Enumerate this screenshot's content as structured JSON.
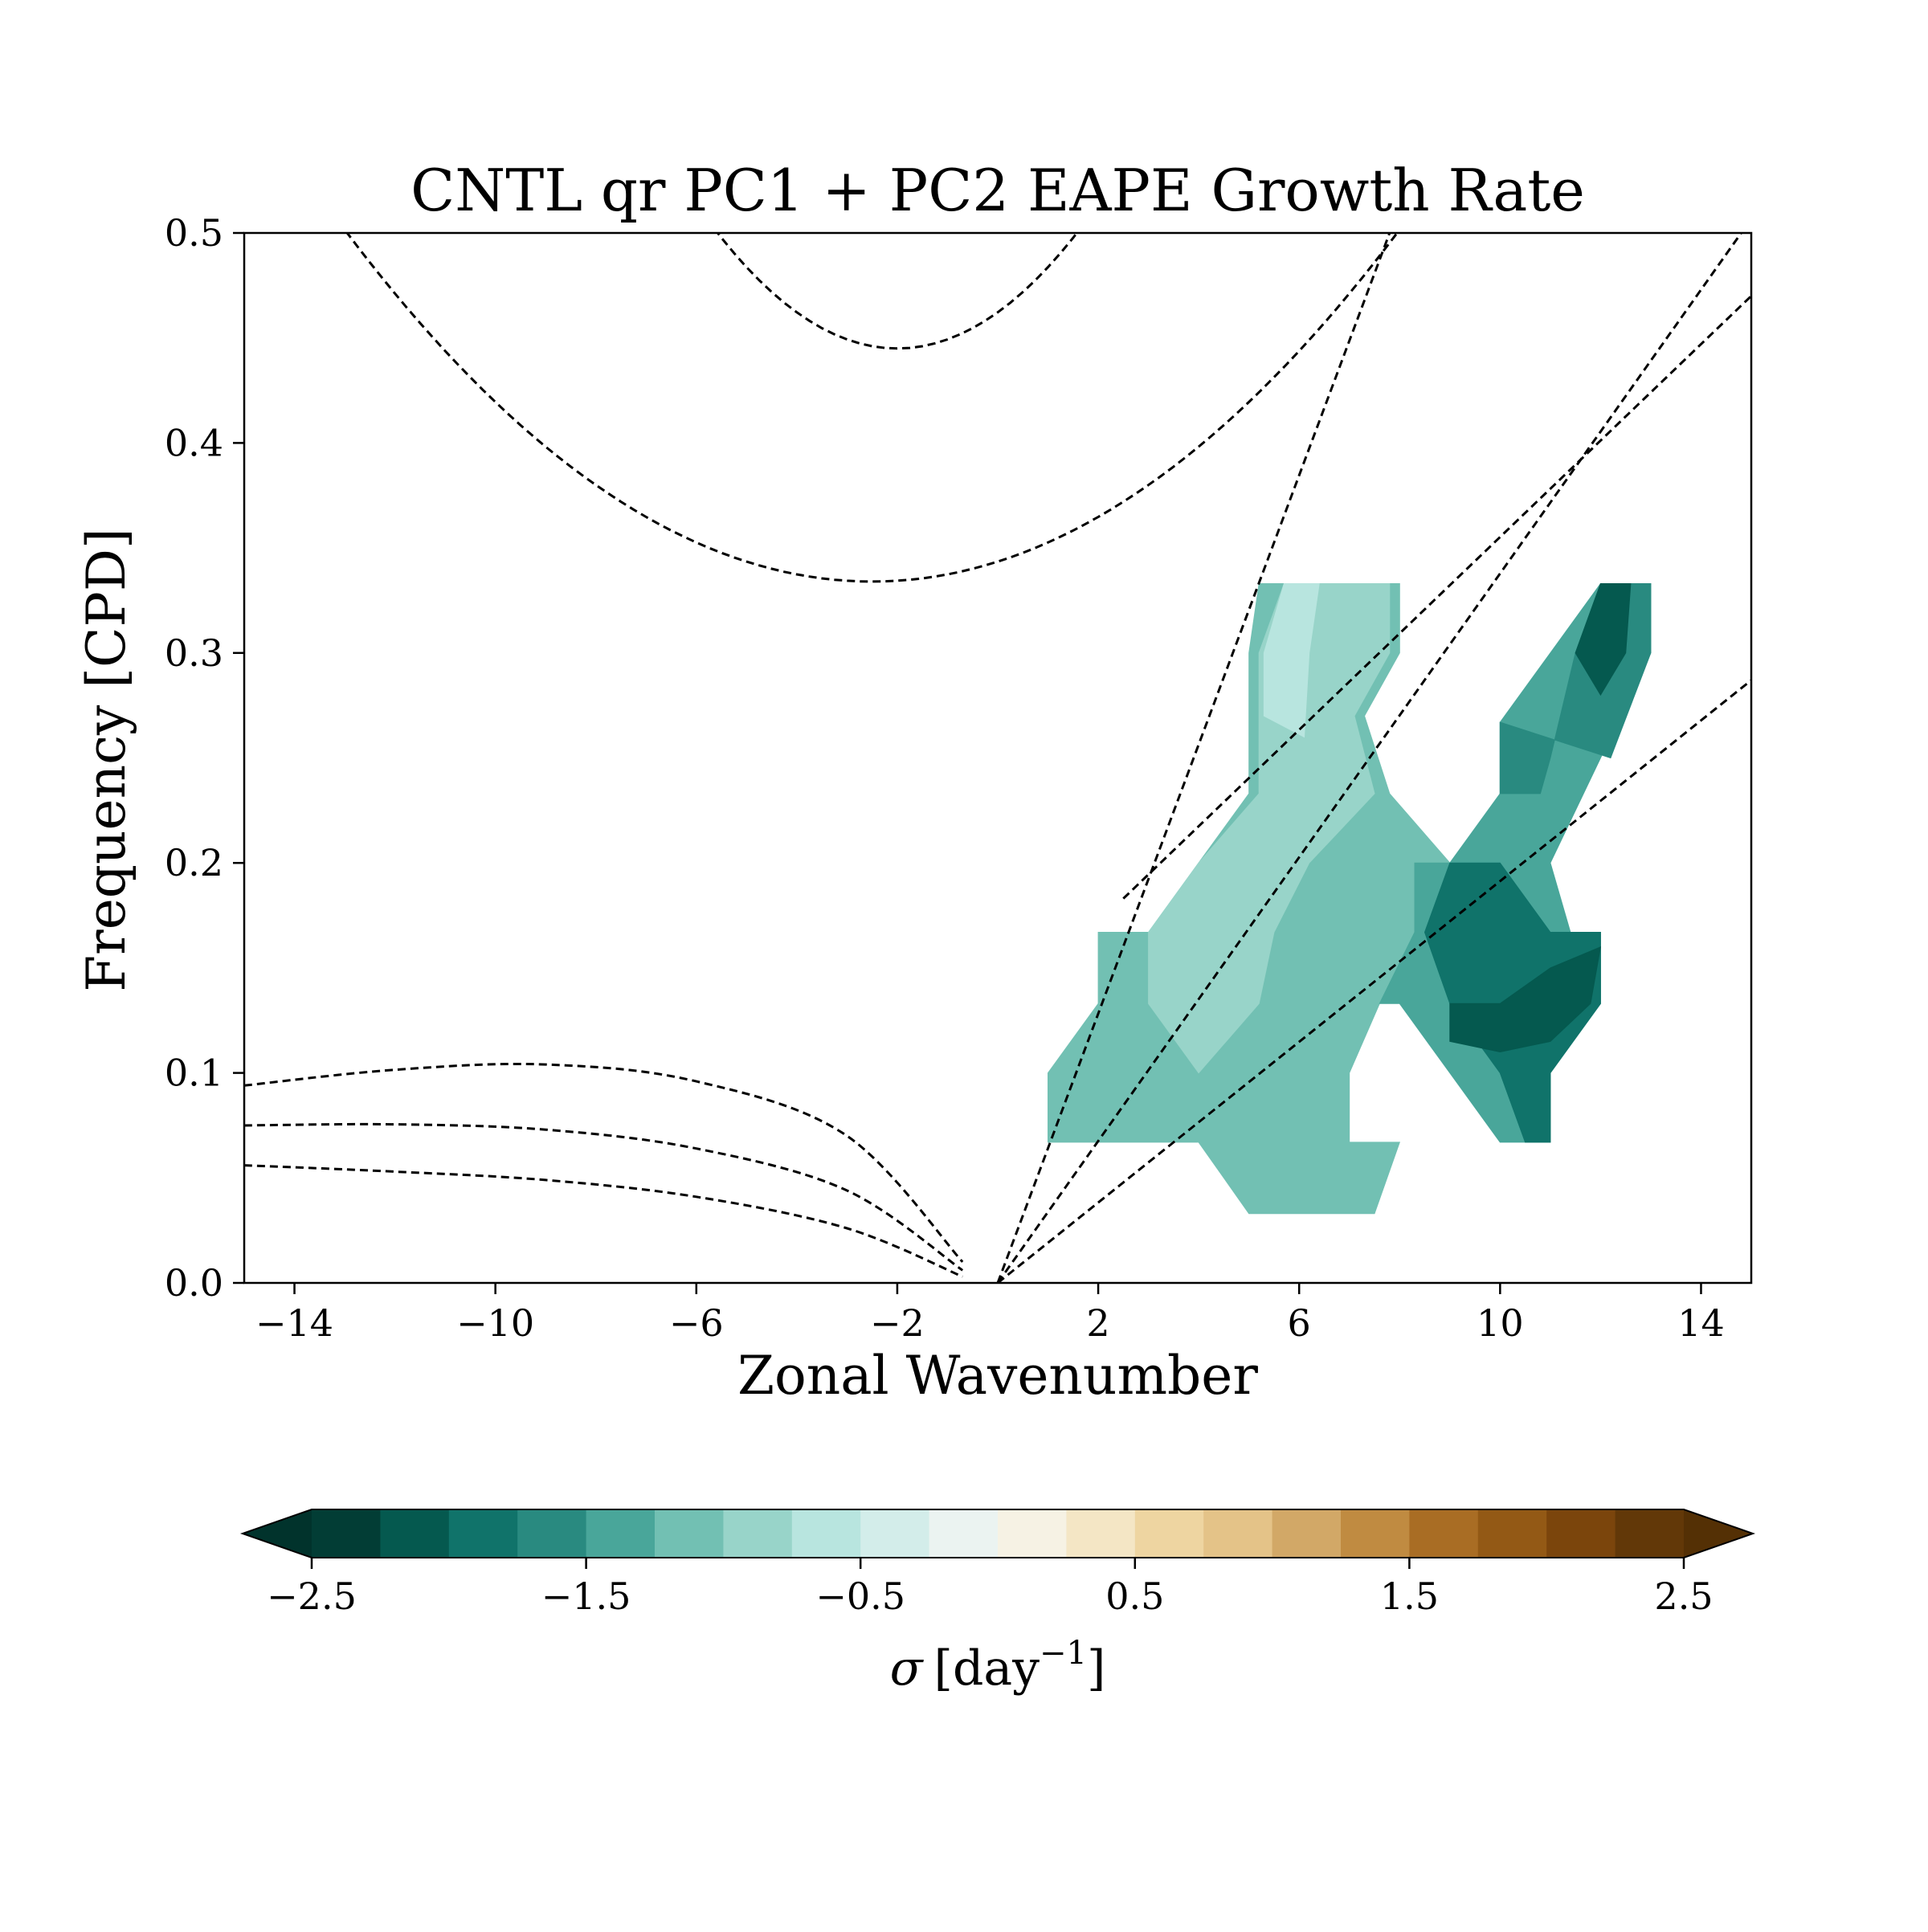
{
  "chart_data": {
    "type": "contourf",
    "title": "CNTL qr PC1 + PC2 EAPE Growth Rate",
    "xlabel": "Zonal Wavenumber",
    "ylabel": "Frequency [CPD]",
    "xlim": [
      -15,
      15
    ],
    "ylim": [
      0.0,
      0.5
    ],
    "xticks": [
      -14,
      -10,
      -6,
      -2,
      2,
      6,
      10,
      14
    ],
    "xtick_labels": [
      "−14",
      "−10",
      "−6",
      "−2",
      "2",
      "6",
      "10",
      "14"
    ],
    "yticks": [
      0.0,
      0.1,
      0.2,
      0.3,
      0.4,
      0.5
    ],
    "ytick_labels": [
      "0.0",
      "0.1",
      "0.2",
      "0.3",
      "0.4",
      "0.5"
    ],
    "grid": false,
    "colorbar": {
      "orientation": "horizontal",
      "position": "below",
      "label_sigma": "σ",
      "label_open": "[day",
      "label_sup": "−1",
      "label_close": "]",
      "extend": "both",
      "vmin": -2.5,
      "vmax": 2.5,
      "ticks": [
        -2.5,
        -1.5,
        -0.5,
        0.5,
        1.5,
        2.5
      ],
      "tick_labels": [
        "−2.5",
        "−1.5",
        "−0.5",
        "0.5",
        "1.5",
        "2.5"
      ],
      "level_colors": [
        "#023d35",
        "#05594f",
        "#10736a",
        "#298a80",
        "#49a69a",
        "#72c0b3",
        "#98d4c9",
        "#b8e5df",
        "#d3edea",
        "#ebf3f1",
        "#f6f2e4",
        "#f4e6c5",
        "#eed5a1",
        "#e4c388",
        "#d2a867",
        "#c08b41",
        "#a96d24",
        "#935915",
        "#7b450c",
        "#623808"
      ],
      "under_color": "#01332c",
      "over_color": "#543005"
    },
    "dispersion_curves": [
      {
        "kind": "parabola",
        "vertex_k": -2.0,
        "vertex_f": 0.445,
        "curv": 0.0043
      },
      {
        "kind": "parabola",
        "vertex_k": -2.5,
        "vertex_f": 0.334,
        "curv": 0.00152
      },
      {
        "kind": "cubic",
        "points": [
          [
            -15,
            0.094
          ],
          [
            -12,
            0.1015
          ],
          [
            -9,
            0.104
          ],
          [
            -6,
            0.096
          ],
          [
            -3,
            0.07
          ],
          [
            -0.7,
            0.01
          ]
        ]
      },
      {
        "kind": "cubic",
        "points": [
          [
            -15,
            0.075
          ],
          [
            -12,
            0.0755
          ],
          [
            -9,
            0.073
          ],
          [
            -6,
            0.064
          ],
          [
            -3,
            0.044
          ],
          [
            -0.7,
            0.006
          ]
        ]
      },
      {
        "kind": "cubic",
        "points": [
          [
            -15,
            0.056
          ],
          [
            -12,
            0.053
          ],
          [
            -9,
            0.049
          ],
          [
            -6,
            0.041
          ],
          [
            -3,
            0.026
          ],
          [
            -0.7,
            0.003
          ]
        ]
      },
      {
        "kind": "line",
        "points": [
          [
            0,
            0
          ],
          [
            7.8,
            0.5
          ]
        ]
      },
      {
        "kind": "line",
        "points": [
          [
            0,
            0
          ],
          [
            14.8,
            0.5
          ]
        ]
      },
      {
        "kind": "line",
        "points": [
          [
            0,
            0
          ],
          [
            15,
            0.287
          ]
        ]
      },
      {
        "kind": "line",
        "points": [
          [
            2.5,
            0.183
          ],
          [
            15,
            0.47
          ]
        ]
      }
    ],
    "filled_regions": [
      {
        "level": -1.25,
        "points": [
          [
            5,
            0.3
          ],
          [
            5.2,
            0.333
          ],
          [
            8,
            0.333
          ],
          [
            8,
            0.3
          ],
          [
            7.3,
            0.27
          ],
          [
            7.8,
            0.233
          ],
          [
            9,
            0.2
          ],
          [
            8.7,
            0.167
          ],
          [
            7.6,
            0.133
          ],
          [
            7,
            0.1
          ],
          [
            7,
            0.067
          ],
          [
            8,
            0.067
          ],
          [
            7.5,
            0.033
          ],
          [
            5,
            0.033
          ],
          [
            4,
            0.067
          ],
          [
            2,
            0.067
          ],
          [
            1,
            0.067
          ],
          [
            1,
            0.1
          ],
          [
            2,
            0.133
          ],
          [
            2,
            0.167
          ],
          [
            3,
            0.167
          ],
          [
            4,
            0.2
          ],
          [
            5,
            0.233
          ]
        ]
      },
      {
        "level": -1.0,
        "points": [
          [
            5.2,
            0.3
          ],
          [
            5.7,
            0.333
          ],
          [
            7.8,
            0.333
          ],
          [
            7.8,
            0.3
          ],
          [
            7.1,
            0.27
          ],
          [
            7.5,
            0.233
          ],
          [
            6.2,
            0.2
          ],
          [
            5.5,
            0.167
          ],
          [
            5.2,
            0.133
          ],
          [
            4,
            0.1
          ],
          [
            3,
            0.133
          ],
          [
            3,
            0.167
          ],
          [
            4,
            0.2
          ],
          [
            5.2,
            0.233
          ],
          [
            5.2,
            0.27
          ]
        ]
      },
      {
        "level": -0.75,
        "points": [
          [
            5.3,
            0.3
          ],
          [
            5.7,
            0.333
          ],
          [
            6.4,
            0.333
          ],
          [
            6.2,
            0.3
          ],
          [
            6.1,
            0.26
          ],
          [
            5.3,
            0.27
          ]
        ]
      },
      {
        "level": -1.5,
        "points": [
          [
            8.3,
            0.2
          ],
          [
            9,
            0.2
          ],
          [
            10,
            0.233
          ],
          [
            10,
            0.267
          ],
          [
            11,
            0.3
          ],
          [
            12,
            0.333
          ],
          [
            13,
            0.333
          ],
          [
            13,
            0.3
          ],
          [
            12,
            0.25
          ],
          [
            11,
            0.2
          ],
          [
            11.4,
            0.167
          ],
          [
            12,
            0.167
          ],
          [
            12,
            0.133
          ],
          [
            11,
            0.1
          ],
          [
            11,
            0.067
          ],
          [
            10,
            0.067
          ],
          [
            9,
            0.1
          ],
          [
            8,
            0.133
          ],
          [
            7.6,
            0.133
          ],
          [
            8.3,
            0.167
          ]
        ]
      },
      {
        "level": -1.75,
        "points": [
          [
            10,
            0.267
          ],
          [
            10,
            0.233
          ],
          [
            10.8,
            0.233
          ],
          [
            11,
            0.25
          ],
          [
            11.5,
            0.3
          ],
          [
            12,
            0.333
          ],
          [
            13,
            0.333
          ],
          [
            13,
            0.3
          ],
          [
            12.2,
            0.25
          ]
        ]
      },
      {
        "level": -2.0,
        "points": [
          [
            9,
            0.2
          ],
          [
            10,
            0.2
          ],
          [
            11,
            0.167
          ],
          [
            12,
            0.167
          ],
          [
            12,
            0.133
          ],
          [
            11,
            0.1
          ],
          [
            11,
            0.067
          ],
          [
            10.5,
            0.067
          ],
          [
            10,
            0.1
          ],
          [
            9,
            0.133
          ],
          [
            8.5,
            0.167
          ]
        ]
      },
      {
        "level": -2.25,
        "points": [
          [
            9,
            0.133
          ],
          [
            10,
            0.133
          ],
          [
            11,
            0.15
          ],
          [
            12,
            0.16
          ],
          [
            11.8,
            0.133
          ],
          [
            11,
            0.115
          ],
          [
            10,
            0.11
          ],
          [
            9,
            0.115
          ]
        ]
      },
      {
        "level": -2.25,
        "points": [
          [
            11.5,
            0.3
          ],
          [
            12,
            0.333
          ],
          [
            12.6,
            0.333
          ],
          [
            12.5,
            0.3
          ],
          [
            12,
            0.28
          ]
        ]
      }
    ]
  }
}
